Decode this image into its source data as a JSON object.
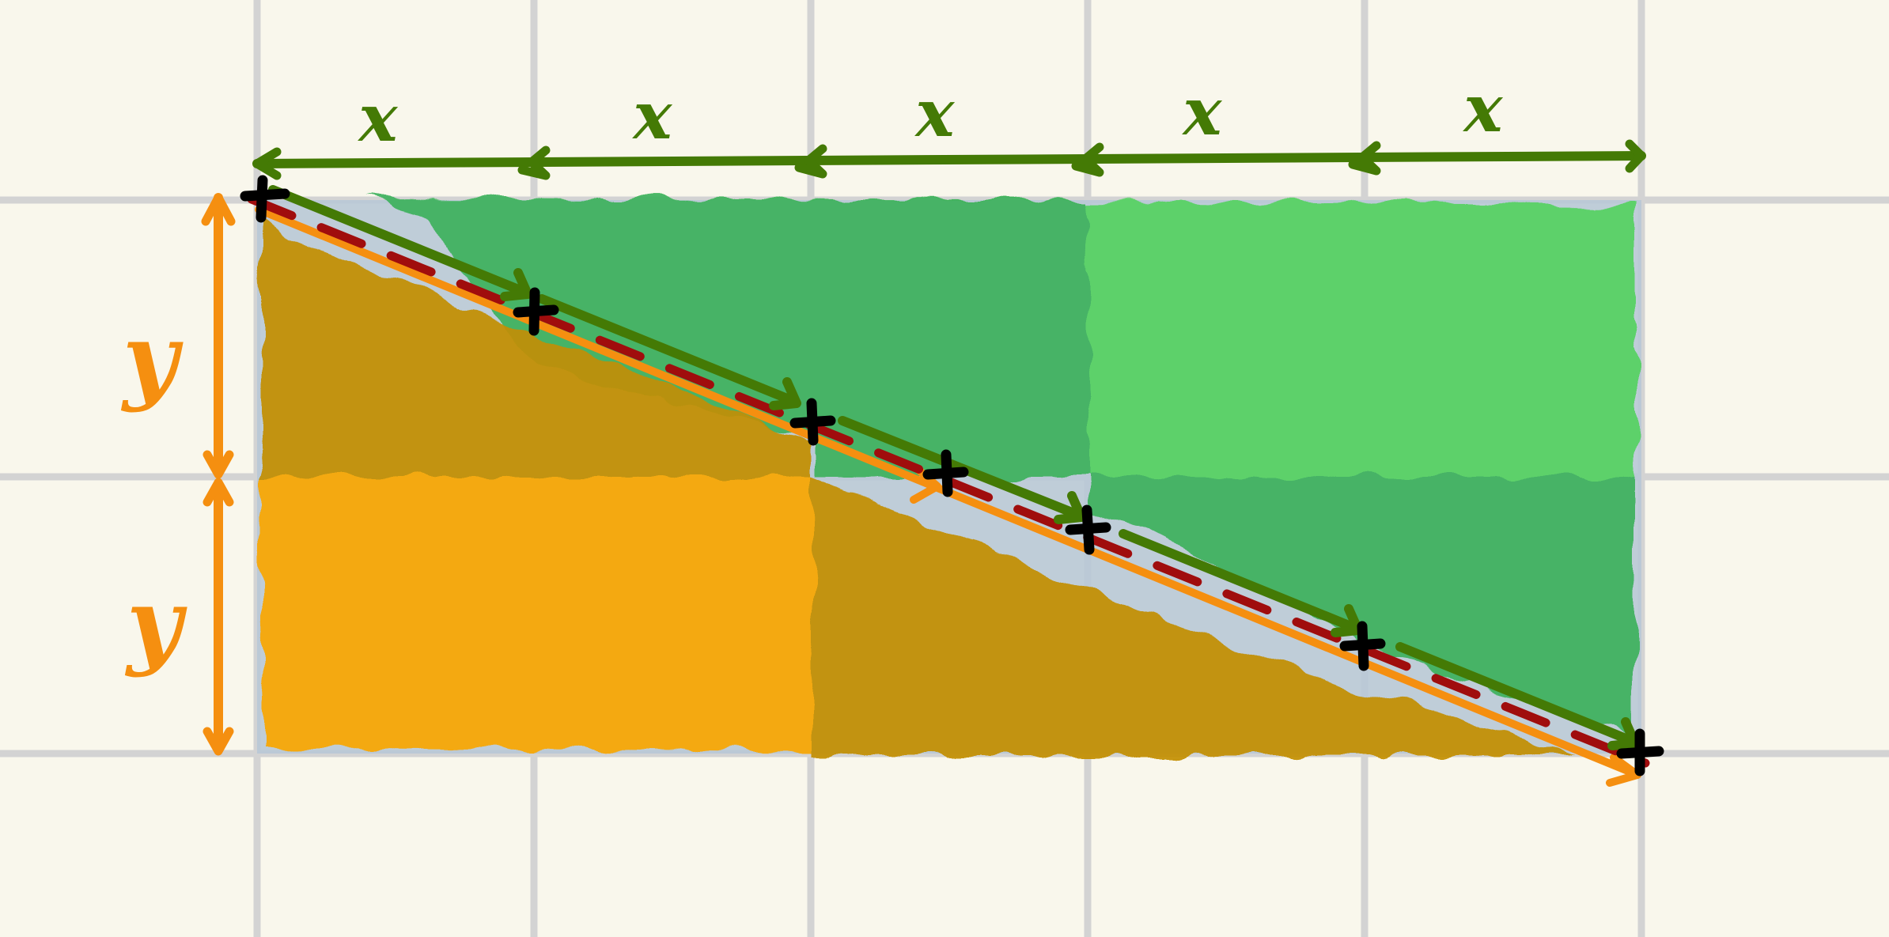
{
  "diagram": {
    "x_label": "x",
    "y_label": "y",
    "x_segments": 5,
    "y_segments": 2,
    "colors": {
      "background": "#f9f7ec",
      "grid": "#d3d3d3",
      "green_light": "#55d162",
      "green_dark": "#3eb15b",
      "orange_light": "#f9a604",
      "orange_dark": "#c28e02",
      "blue_edge": "#b8c8d6",
      "x_arrow": "#447a05",
      "y_arrow": "#f58f10",
      "diag_dash": "#a00d0d",
      "cross": "#000000"
    }
  }
}
